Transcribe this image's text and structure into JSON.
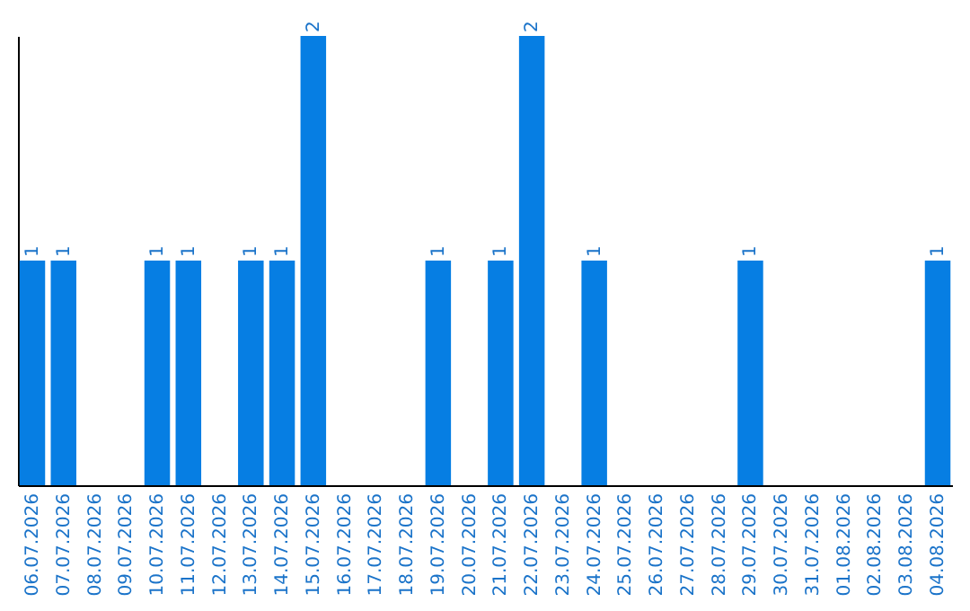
{
  "chart_data": {
    "type": "bar",
    "categories": [
      "06.07.2026",
      "07.07.2026",
      "08.07.2026",
      "09.07.2026",
      "10.07.2026",
      "11.07.2026",
      "12.07.2026",
      "13.07.2026",
      "14.07.2026",
      "15.07.2026",
      "16.07.2026",
      "17.07.2026",
      "18.07.2026",
      "19.07.2026",
      "20.07.2026",
      "21.07.2026",
      "22.07.2026",
      "23.07.2026",
      "24.07.2026",
      "25.07.2026",
      "26.07.2026",
      "27.07.2026",
      "28.07.2026",
      "29.07.2026",
      "30.07.2026",
      "31.07.2026",
      "01.08.2026",
      "02.08.2026",
      "03.08.2026",
      "04.08.2026"
    ],
    "values": [
      1,
      1,
      0,
      0,
      1,
      1,
      0,
      1,
      1,
      2,
      0,
      0,
      0,
      1,
      0,
      1,
      2,
      0,
      1,
      0,
      0,
      0,
      0,
      1,
      0,
      0,
      0,
      0,
      0,
      1
    ],
    "value_labels": [
      "1",
      "1",
      null,
      null,
      "1",
      "1",
      null,
      "1",
      "1",
      "2",
      null,
      null,
      null,
      "1",
      null,
      "1",
      "2",
      null,
      "1",
      null,
      null,
      null,
      null,
      "1",
      null,
      null,
      null,
      null,
      null,
      "1"
    ],
    "color": "#067ee3",
    "ylim": [
      0,
      2
    ],
    "tick_labels": "x"
  }
}
